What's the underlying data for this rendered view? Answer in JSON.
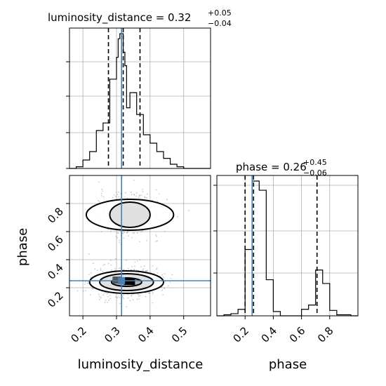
{
  "chart_data": {
    "type": "corner",
    "parameters": [
      "luminosity_distance",
      "phase"
    ],
    "colors": {
      "truth": "#4682b4",
      "hist": "#000000",
      "grid": "#b0b0b0"
    },
    "marginals": [
      {
        "name": "luminosity_distance",
        "title_main": "luminosity_distance = 0.32",
        "title_up": "+0.05",
        "title_down": "−0.04",
        "xlim": [
          0.16,
          0.58
        ],
        "xticks": [
          "0.2",
          "0.3",
          "0.4",
          "0.5"
        ],
        "xtick_values": [
          0.2,
          0.3,
          0.4,
          0.5
        ],
        "bin_edges": [
          0.16,
          0.18,
          0.2,
          0.22,
          0.24,
          0.26,
          0.28,
          0.3,
          0.305,
          0.31,
          0.32,
          0.325,
          0.33,
          0.34,
          0.36,
          0.38,
          0.4,
          0.42,
          0.44,
          0.46,
          0.48,
          0.5,
          0.52,
          0.54,
          0.56,
          0.58
        ],
        "counts": [
          0,
          0.02,
          0.1,
          0.2,
          0.45,
          0.54,
          1.06,
          1.32,
          1.54,
          1.6,
          1.38,
          1.22,
          0.72,
          0.9,
          0.64,
          0.4,
          0.3,
          0.2,
          0.12,
          0.05,
          0.02,
          0,
          0,
          0,
          0
        ],
        "quantiles": [
          0.276,
          0.32,
          0.37
        ],
        "truth": 0.315
      },
      {
        "name": "phase",
        "title_main": "phase = 0.26",
        "title_up": "+0.45",
        "title_down": "−0.06",
        "xlim": [
          0.0,
          1.0
        ],
        "xticks": [
          "0.2",
          "0.4",
          "0.6",
          "0.8"
        ],
        "xtick_values": [
          0.2,
          0.4,
          0.6,
          0.8
        ],
        "bin_edges": [
          0.0,
          0.05,
          0.1,
          0.15,
          0.2,
          0.25,
          0.3,
          0.35,
          0.4,
          0.45,
          0.5,
          0.55,
          0.6,
          0.65,
          0.7,
          0.75,
          0.8,
          0.85,
          0.9,
          0.95,
          1.0
        ],
        "counts": [
          0,
          0.02,
          0.04,
          0.12,
          1.23,
          2.5,
          2.33,
          0.67,
          0.08,
          0,
          0,
          0,
          0.12,
          0.2,
          0.85,
          0.6,
          0.1,
          0.02,
          0.02,
          0
        ],
        "quantiles": [
          0.2,
          0.26,
          0.71
        ],
        "truth": 0.25
      }
    ],
    "joint": {
      "x": "luminosity_distance",
      "y": "phase",
      "xlim": [
        0.16,
        0.58
      ],
      "ylim": [
        0.0,
        1.0
      ],
      "yticks": [
        "0.2",
        "0.4",
        "0.6",
        "0.8"
      ],
      "ytick_values": [
        0.2,
        0.4,
        0.6,
        0.8
      ],
      "truth": [
        0.315,
        0.25
      ],
      "modes": [
        {
          "center": [
            0.34,
            0.72
          ],
          "contours": [
            [
              0.06,
              0.09
            ],
            [
              0.13,
              0.11
            ]
          ]
        },
        {
          "center": [
            0.33,
            0.24
          ],
          "contours": [
            [
              0.045,
              0.03
            ],
            [
              0.08,
              0.06
            ],
            [
              0.11,
              0.08
            ]
          ]
        }
      ]
    },
    "xlabel_left": "luminosity_distance",
    "xlabel_right": "phase",
    "ylabel_joint": "phase"
  }
}
